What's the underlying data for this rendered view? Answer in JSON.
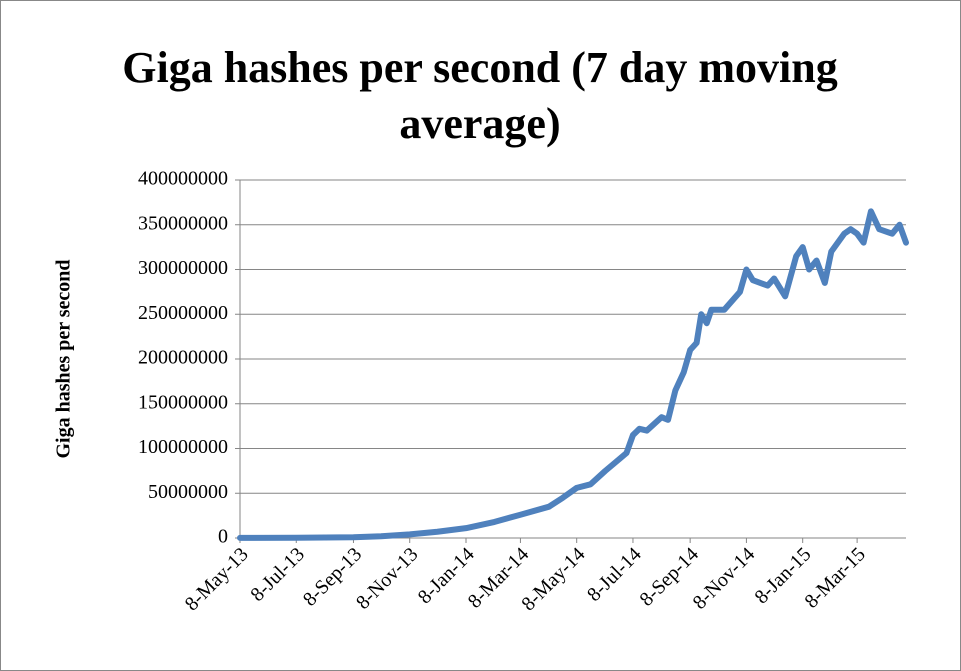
{
  "chart_data": {
    "type": "line",
    "title": "Giga hashes per second (7 day moving average)",
    "y_label": "Giga hashes per second",
    "x": [
      "8-May-13",
      "8-Jul-13",
      "8-Sep-13",
      "8-Oct-13",
      "8-Nov-13",
      "8-Dec-13",
      "8-Jan-14",
      "8-Feb-14",
      "8-Mar-14",
      "8-Apr-14",
      "23-Apr-14",
      "8-May-14",
      "23-May-14",
      "8-Jun-14",
      "23-Jun-14",
      "1-Jul-14",
      "8-Jul-14",
      "15-Jul-14",
      "23-Jul-14",
      "8-Aug-14",
      "15-Aug-14",
      "23-Aug-14",
      "1-Sep-14",
      "8-Sep-14",
      "15-Sep-14",
      "20-Sep-14",
      "26-Sep-14",
      "1-Oct-14",
      "15-Oct-14",
      "1-Nov-14",
      "8-Nov-14",
      "15-Nov-14",
      "1-Dec-14",
      "8-Dec-14",
      "20-Dec-14",
      "1-Jan-15",
      "8-Jan-15",
      "15-Jan-15",
      "23-Jan-15",
      "1-Feb-15",
      "8-Feb-15",
      "22-Feb-15",
      "1-Mar-15",
      "8-Mar-15",
      "15-Mar-15",
      "23-Mar-15",
      "1-Apr-15",
      "15-Apr-15",
      "23-Apr-15",
      "30-Apr-15"
    ],
    "series": [
      {
        "name": "Giga hashes per second",
        "color": "#4f81bd",
        "values": [
          100000,
          300000,
          800000,
          2000000,
          4000000,
          7000000,
          11000000,
          18000000,
          26000000,
          35000000,
          45000000,
          56000000,
          60000000,
          75000000,
          88000000,
          95000000,
          115000000,
          122000000,
          120000000,
          135000000,
          132000000,
          165000000,
          185000000,
          210000000,
          218000000,
          250000000,
          240000000,
          255000000,
          255000000,
          275000000,
          300000000,
          288000000,
          282000000,
          290000000,
          270000000,
          315000000,
          325000000,
          300000000,
          310000000,
          285000000,
          320000000,
          340000000,
          345000000,
          340000000,
          330000000,
          365000000,
          345000000,
          340000000,
          350000000,
          330000000
        ]
      }
    ],
    "xlim": [
      "8-May-13",
      "30-Apr-15"
    ],
    "xticks": [
      "8-May-13",
      "8-Jul-13",
      "8-Sep-13",
      "8-Nov-13",
      "8-Jan-14",
      "8-Mar-14",
      "8-May-14",
      "8-Jul-14",
      "8-Sep-14",
      "8-Nov-14",
      "8-Jan-15",
      "8-Mar-15"
    ],
    "ylim": [
      0,
      400000000
    ],
    "yticks": [
      0,
      50000000,
      100000000,
      150000000,
      200000000,
      250000000,
      300000000,
      350000000,
      400000000
    ],
    "grid": true
  }
}
